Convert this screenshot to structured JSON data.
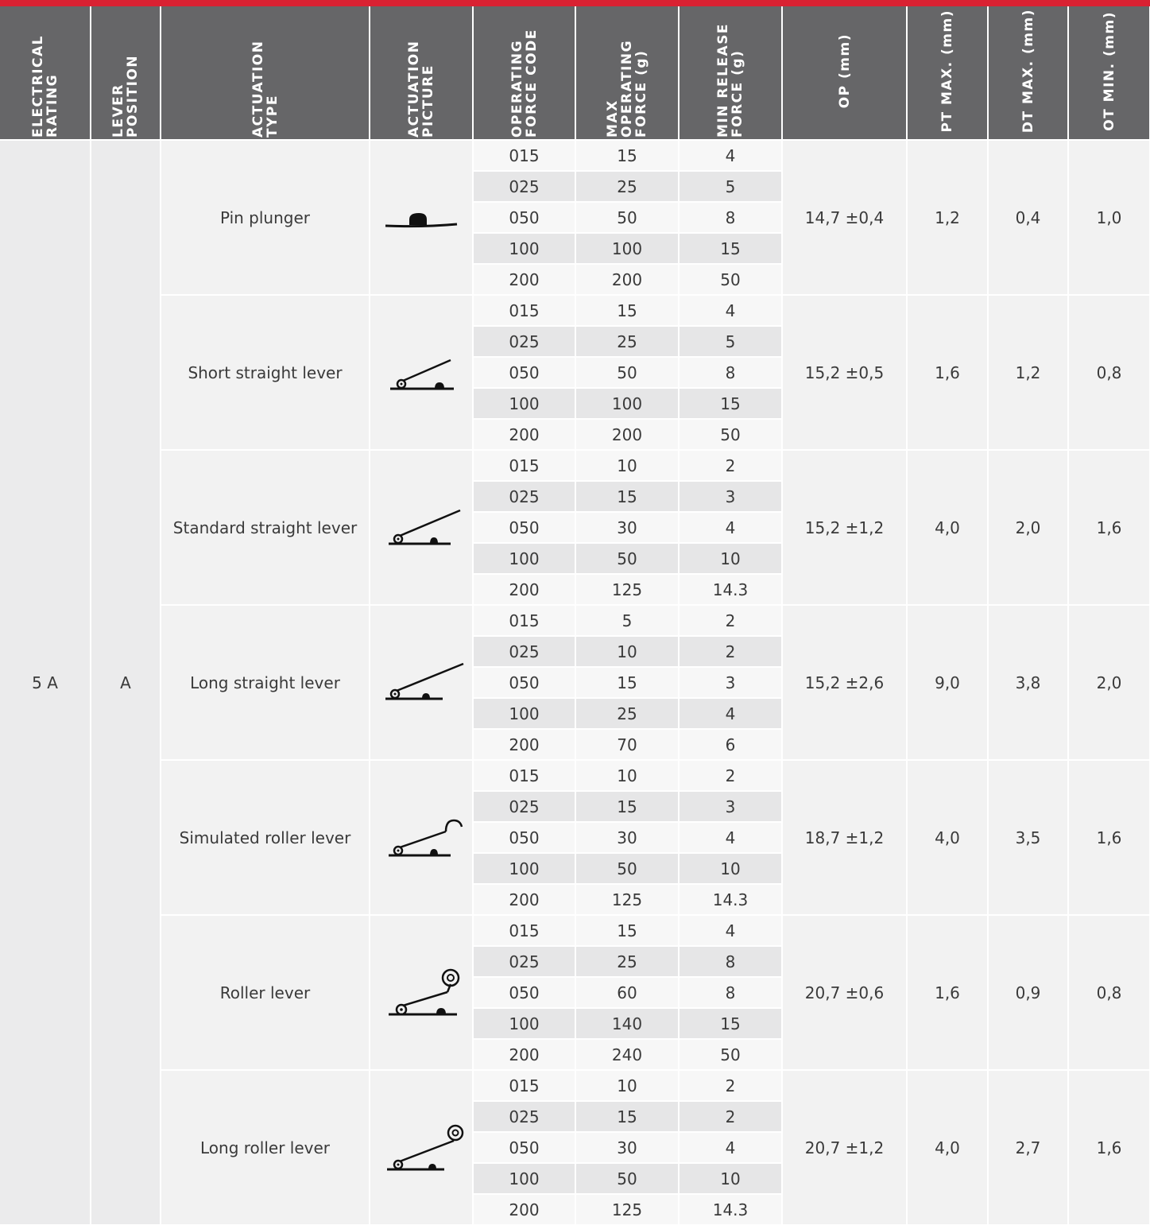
{
  "columns": [
    "ELECTRICAL RATING",
    "LEVER POSITION",
    "ACTUATION TYPE",
    "ACTUATION PICTURE",
    "OPERATING FORCE CODE",
    "MAX OPERATING FORCE (g)",
    "MIN RELEASE FORCE (g)",
    "OP (mm)",
    "PT MAX. (mm)",
    "DT MAX. (mm)",
    "OT MIN. (mm)"
  ],
  "electrical_rating": "5 A",
  "lever_position": "A",
  "groups": [
    {
      "actuation_type": "Pin plunger",
      "picture_icon": "pin-plunger-icon",
      "op": "14,7 ±0,4",
      "pt_max": "1,2",
      "dt_max": "0,4",
      "ot_min": "1,0",
      "rows": [
        {
          "code": "015",
          "max_force": "15",
          "min_release": "4"
        },
        {
          "code": "025",
          "max_force": "25",
          "min_release": "5"
        },
        {
          "code": "050",
          "max_force": "50",
          "min_release": "8"
        },
        {
          "code": "100",
          "max_force": "100",
          "min_release": "15"
        },
        {
          "code": "200",
          "max_force": "200",
          "min_release": "50"
        }
      ]
    },
    {
      "actuation_type": "Short straight lever",
      "picture_icon": "short-straight-lever-icon",
      "op": "15,2 ±0,5",
      "pt_max": "1,6",
      "dt_max": "1,2",
      "ot_min": "0,8",
      "rows": [
        {
          "code": "015",
          "max_force": "15",
          "min_release": "4"
        },
        {
          "code": "025",
          "max_force": "25",
          "min_release": "5"
        },
        {
          "code": "050",
          "max_force": "50",
          "min_release": "8"
        },
        {
          "code": "100",
          "max_force": "100",
          "min_release": "15"
        },
        {
          "code": "200",
          "max_force": "200",
          "min_release": "50"
        }
      ]
    },
    {
      "actuation_type": "Standard straight lever",
      "picture_icon": "standard-straight-lever-icon",
      "op": "15,2 ±1,2",
      "pt_max": "4,0",
      "dt_max": "2,0",
      "ot_min": "1,6",
      "rows": [
        {
          "code": "015",
          "max_force": "10",
          "min_release": "2"
        },
        {
          "code": "025",
          "max_force": "15",
          "min_release": "3"
        },
        {
          "code": "050",
          "max_force": "30",
          "min_release": "4"
        },
        {
          "code": "100",
          "max_force": "50",
          "min_release": "10"
        },
        {
          "code": "200",
          "max_force": "125",
          "min_release": "14.3"
        }
      ]
    },
    {
      "actuation_type": "Long straight lever",
      "picture_icon": "long-straight-lever-icon",
      "op": "15,2 ±2,6",
      "pt_max": "9,0",
      "dt_max": "3,8",
      "ot_min": "2,0",
      "rows": [
        {
          "code": "015",
          "max_force": "5",
          "min_release": "2"
        },
        {
          "code": "025",
          "max_force": "10",
          "min_release": "2"
        },
        {
          "code": "050",
          "max_force": "15",
          "min_release": "3"
        },
        {
          "code": "100",
          "max_force": "25",
          "min_release": "4"
        },
        {
          "code": "200",
          "max_force": "70",
          "min_release": "6"
        }
      ]
    },
    {
      "actuation_type": "Simulated roller lever",
      "picture_icon": "simulated-roller-lever-icon",
      "op": "18,7 ±1,2",
      "pt_max": "4,0",
      "dt_max": "3,5",
      "ot_min": "1,6",
      "rows": [
        {
          "code": "015",
          "max_force": "10",
          "min_release": "2"
        },
        {
          "code": "025",
          "max_force": "15",
          "min_release": "3"
        },
        {
          "code": "050",
          "max_force": "30",
          "min_release": "4"
        },
        {
          "code": "100",
          "max_force": "50",
          "min_release": "10"
        },
        {
          "code": "200",
          "max_force": "125",
          "min_release": "14.3"
        }
      ]
    },
    {
      "actuation_type": "Roller lever",
      "picture_icon": "roller-lever-icon",
      "op": "20,7 ±0,6",
      "pt_max": "1,6",
      "dt_max": "0,9",
      "ot_min": "0,8",
      "rows": [
        {
          "code": "015",
          "max_force": "15",
          "min_release": "4"
        },
        {
          "code": "025",
          "max_force": "25",
          "min_release": "8"
        },
        {
          "code": "050",
          "max_force": "60",
          "min_release": "8"
        },
        {
          "code": "100",
          "max_force": "140",
          "min_release": "15"
        },
        {
          "code": "200",
          "max_force": "240",
          "min_release": "50"
        }
      ]
    },
    {
      "actuation_type": "Long roller lever",
      "picture_icon": "long-roller-lever-icon",
      "op": "20,7 ±1,2",
      "pt_max": "4,0",
      "dt_max": "2,7",
      "ot_min": "1,6",
      "rows": [
        {
          "code": "015",
          "max_force": "10",
          "min_release": "2"
        },
        {
          "code": "025",
          "max_force": "15",
          "min_release": "2"
        },
        {
          "code": "050",
          "max_force": "30",
          "min_release": "4"
        },
        {
          "code": "100",
          "max_force": "50",
          "min_release": "10"
        },
        {
          "code": "200",
          "max_force": "125",
          "min_release": "14.3"
        }
      ]
    }
  ],
  "colors": {
    "accent_red": "#d92132",
    "header_gray": "#666668",
    "band_light": "#f7f7f7",
    "band_dark": "#e6e6e7"
  }
}
